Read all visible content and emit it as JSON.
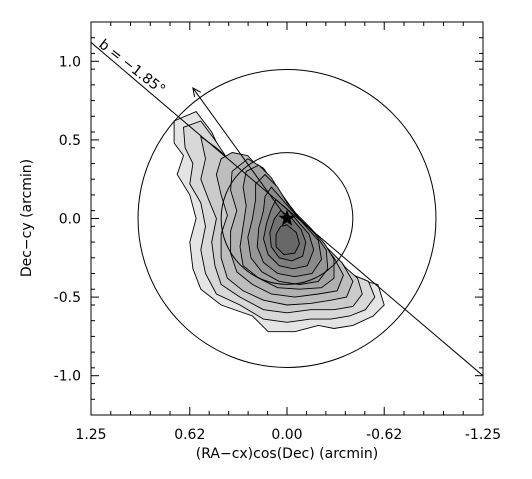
{
  "chart_data": {
    "type": "contour",
    "xlabel": "(RA−cx)cos(Dec) (arcmin)",
    "ylabel": "Dec−cy (arcmin)",
    "xlim": [
      1.25,
      -1.25
    ],
    "ylim": [
      -1.25,
      1.25
    ],
    "x_ticks": [
      "1.25",
      "0.62",
      "0.00",
      "-0.62",
      "-1.25"
    ],
    "x_tick_values": [
      1.25,
      0.62,
      0.0,
      -0.62,
      -1.25
    ],
    "y_ticks": [
      "1.0",
      "0.5",
      "0.0",
      "-0.5",
      "-1.0"
    ],
    "y_tick_values": [
      1.0,
      0.5,
      0.0,
      -0.5,
      -1.0
    ],
    "annotation": "b = −1.85°",
    "line": {
      "x": [
        1.25,
        -1.25
      ],
      "y": [
        1.12,
        -1.0
      ]
    },
    "arrow": {
      "from": [
        0.0,
        0.0
      ],
      "to": [
        0.6,
        0.83
      ]
    },
    "center_marker": {
      "symbol": "star",
      "x": 0.0,
      "y": 0.0
    },
    "circles": [
      {
        "cx": 0.0,
        "cy": 0.0,
        "r": 0.95
      },
      {
        "cx": 0.0,
        "cy": 0.0,
        "r": 0.42
      }
    ],
    "contour_levels": [
      {
        "level": 1,
        "fill": "#e4e4e4",
        "points": [
          [
            0.72,
            0.62
          ],
          [
            0.58,
            0.68
          ],
          [
            0.48,
            0.55
          ],
          [
            0.42,
            0.42
          ],
          [
            0.32,
            0.33
          ],
          [
            0.18,
            0.15
          ],
          [
            0.05,
            0.02
          ],
          [
            -0.1,
            -0.12
          ],
          [
            -0.22,
            -0.22
          ],
          [
            -0.3,
            -0.3
          ],
          [
            -0.35,
            -0.28
          ],
          [
            -0.42,
            -0.38
          ],
          [
            -0.58,
            -0.42
          ],
          [
            -0.62,
            -0.55
          ],
          [
            -0.55,
            -0.62
          ],
          [
            -0.42,
            -0.68
          ],
          [
            -0.3,
            -0.7
          ],
          [
            -0.2,
            -0.68
          ],
          [
            -0.05,
            -0.72
          ],
          [
            0.12,
            -0.72
          ],
          [
            0.22,
            -0.62
          ],
          [
            0.42,
            -0.55
          ],
          [
            0.55,
            -0.45
          ],
          [
            0.6,
            -0.32
          ],
          [
            0.62,
            -0.15
          ],
          [
            0.58,
            0.0
          ],
          [
            0.62,
            0.15
          ],
          [
            0.7,
            0.28
          ],
          [
            0.66,
            0.4
          ],
          [
            0.72,
            0.48
          ]
        ]
      },
      {
        "level": 2,
        "fill": "#d8d8d8",
        "points": [
          [
            0.66,
            0.58
          ],
          [
            0.55,
            0.62
          ],
          [
            0.46,
            0.5
          ],
          [
            0.38,
            0.38
          ],
          [
            0.28,
            0.3
          ],
          [
            0.15,
            0.12
          ],
          [
            0.02,
            0.0
          ],
          [
            -0.12,
            -0.12
          ],
          [
            -0.25,
            -0.22
          ],
          [
            -0.32,
            -0.28
          ],
          [
            -0.4,
            -0.35
          ],
          [
            -0.52,
            -0.4
          ],
          [
            -0.56,
            -0.5
          ],
          [
            -0.5,
            -0.58
          ],
          [
            -0.4,
            -0.62
          ],
          [
            -0.28,
            -0.64
          ],
          [
            -0.15,
            -0.64
          ],
          [
            0.0,
            -0.66
          ],
          [
            0.15,
            -0.64
          ],
          [
            0.3,
            -0.55
          ],
          [
            0.45,
            -0.48
          ],
          [
            0.52,
            -0.35
          ],
          [
            0.55,
            -0.2
          ],
          [
            0.52,
            -0.05
          ],
          [
            0.55,
            0.1
          ],
          [
            0.62,
            0.22
          ],
          [
            0.6,
            0.35
          ],
          [
            0.65,
            0.45
          ]
        ]
      },
      {
        "level": 3,
        "fill": "#cbcbcb",
        "points": [
          [
            0.55,
            0.52
          ],
          [
            0.45,
            0.45
          ],
          [
            0.35,
            0.36
          ],
          [
            0.25,
            0.28
          ],
          [
            0.12,
            0.1
          ],
          [
            0.0,
            -0.02
          ],
          [
            -0.15,
            -0.12
          ],
          [
            -0.28,
            -0.22
          ],
          [
            -0.36,
            -0.3
          ],
          [
            -0.45,
            -0.38
          ],
          [
            -0.48,
            -0.48
          ],
          [
            -0.42,
            -0.56
          ],
          [
            -0.3,
            -0.58
          ],
          [
            -0.15,
            -0.58
          ],
          [
            0.0,
            -0.6
          ],
          [
            0.15,
            -0.58
          ],
          [
            0.3,
            -0.5
          ],
          [
            0.42,
            -0.42
          ],
          [
            0.46,
            -0.3
          ],
          [
            0.48,
            -0.15
          ],
          [
            0.45,
            0.0
          ],
          [
            0.5,
            0.12
          ],
          [
            0.55,
            0.25
          ],
          [
            0.52,
            0.38
          ]
        ]
      },
      {
        "level": 4,
        "fill": "#bdbdbd",
        "points": [
          [
            0.35,
            0.42
          ],
          [
            0.25,
            0.4
          ],
          [
            0.18,
            0.32
          ],
          [
            0.1,
            0.2
          ],
          [
            0.0,
            0.05
          ],
          [
            -0.12,
            -0.08
          ],
          [
            -0.25,
            -0.18
          ],
          [
            -0.35,
            -0.28
          ],
          [
            -0.42,
            -0.4
          ],
          [
            -0.38,
            -0.5
          ],
          [
            -0.28,
            -0.52
          ],
          [
            -0.15,
            -0.54
          ],
          [
            0.0,
            -0.55
          ],
          [
            0.15,
            -0.52
          ],
          [
            0.28,
            -0.46
          ],
          [
            0.38,
            -0.38
          ],
          [
            0.42,
            -0.25
          ],
          [
            0.42,
            -0.1
          ],
          [
            0.38,
            0.02
          ],
          [
            0.42,
            0.15
          ],
          [
            0.45,
            0.28
          ],
          [
            0.42,
            0.38
          ]
        ]
      },
      {
        "level": 5,
        "fill": "#b0b0b0",
        "points": [
          [
            0.25,
            0.38
          ],
          [
            0.15,
            0.32
          ],
          [
            0.08,
            0.22
          ],
          [
            -0.02,
            0.08
          ],
          [
            -0.12,
            -0.05
          ],
          [
            -0.22,
            -0.15
          ],
          [
            -0.3,
            -0.25
          ],
          [
            -0.36,
            -0.36
          ],
          [
            -0.32,
            -0.46
          ],
          [
            -0.2,
            -0.48
          ],
          [
            -0.05,
            -0.5
          ],
          [
            0.1,
            -0.48
          ],
          [
            0.22,
            -0.42
          ],
          [
            0.32,
            -0.34
          ],
          [
            0.36,
            -0.22
          ],
          [
            0.36,
            -0.08
          ],
          [
            0.32,
            0.05
          ],
          [
            0.36,
            0.18
          ],
          [
            0.35,
            0.3
          ]
        ]
      },
      {
        "level": 6,
        "fill": "#a3a3a3",
        "points": [
          [
            0.18,
            0.34
          ],
          [
            0.1,
            0.26
          ],
          [
            0.04,
            0.16
          ],
          [
            -0.05,
            0.04
          ],
          [
            -0.15,
            -0.06
          ],
          [
            -0.24,
            -0.16
          ],
          [
            -0.3,
            -0.26
          ],
          [
            -0.3,
            -0.38
          ],
          [
            -0.22,
            -0.44
          ],
          [
            -0.08,
            -0.45
          ],
          [
            0.06,
            -0.44
          ],
          [
            0.18,
            -0.38
          ],
          [
            0.28,
            -0.3
          ],
          [
            0.3,
            -0.18
          ],
          [
            0.28,
            -0.05
          ],
          [
            0.26,
            0.08
          ],
          [
            0.28,
            0.2
          ],
          [
            0.26,
            0.3
          ]
        ]
      },
      {
        "level": 7,
        "fill": "#969696",
        "points": [
          [
            0.14,
            0.28
          ],
          [
            0.06,
            0.2
          ],
          [
            0.0,
            0.1
          ],
          [
            -0.08,
            0.0
          ],
          [
            -0.18,
            -0.1
          ],
          [
            -0.25,
            -0.2
          ],
          [
            -0.26,
            -0.32
          ],
          [
            -0.2,
            -0.4
          ],
          [
            -0.08,
            -0.42
          ],
          [
            0.05,
            -0.4
          ],
          [
            0.16,
            -0.34
          ],
          [
            0.23,
            -0.25
          ],
          [
            0.25,
            -0.12
          ],
          [
            0.22,
            0.0
          ],
          [
            0.2,
            0.12
          ],
          [
            0.2,
            0.22
          ]
        ]
      },
      {
        "level": 8,
        "fill": "#8a8a8a",
        "points": [
          [
            0.1,
            0.2
          ],
          [
            0.03,
            0.12
          ],
          [
            -0.04,
            0.04
          ],
          [
            -0.12,
            -0.05
          ],
          [
            -0.2,
            -0.14
          ],
          [
            -0.22,
            -0.26
          ],
          [
            -0.16,
            -0.35
          ],
          [
            -0.05,
            -0.37
          ],
          [
            0.06,
            -0.35
          ],
          [
            0.15,
            -0.28
          ],
          [
            0.19,
            -0.18
          ],
          [
            0.18,
            -0.06
          ],
          [
            0.15,
            0.05
          ],
          [
            0.14,
            0.14
          ]
        ]
      },
      {
        "level": 9,
        "fill": "#7e7e7e",
        "points": [
          [
            0.07,
            0.12
          ],
          [
            0.0,
            0.06
          ],
          [
            -0.07,
            -0.02
          ],
          [
            -0.14,
            -0.1
          ],
          [
            -0.17,
            -0.2
          ],
          [
            -0.13,
            -0.3
          ],
          [
            -0.04,
            -0.32
          ],
          [
            0.05,
            -0.3
          ],
          [
            0.12,
            -0.23
          ],
          [
            0.15,
            -0.13
          ],
          [
            0.13,
            -0.03
          ],
          [
            0.1,
            0.06
          ]
        ]
      },
      {
        "level": 10,
        "fill": "#727272",
        "points": [
          [
            0.04,
            0.05
          ],
          [
            -0.03,
            0.0
          ],
          [
            -0.09,
            -0.07
          ],
          [
            -0.12,
            -0.15
          ],
          [
            -0.1,
            -0.24
          ],
          [
            -0.03,
            -0.27
          ],
          [
            0.05,
            -0.25
          ],
          [
            0.1,
            -0.18
          ],
          [
            0.11,
            -0.09
          ],
          [
            0.08,
            0.0
          ]
        ]
      },
      {
        "level": 11,
        "fill": "#686868",
        "points": [
          [
            0.0,
            -0.04
          ],
          [
            -0.06,
            -0.09
          ],
          [
            -0.08,
            -0.16
          ],
          [
            -0.05,
            -0.22
          ],
          [
            0.02,
            -0.23
          ],
          [
            0.07,
            -0.18
          ],
          [
            0.07,
            -0.1
          ],
          [
            0.04,
            -0.05
          ]
        ]
      }
    ]
  }
}
